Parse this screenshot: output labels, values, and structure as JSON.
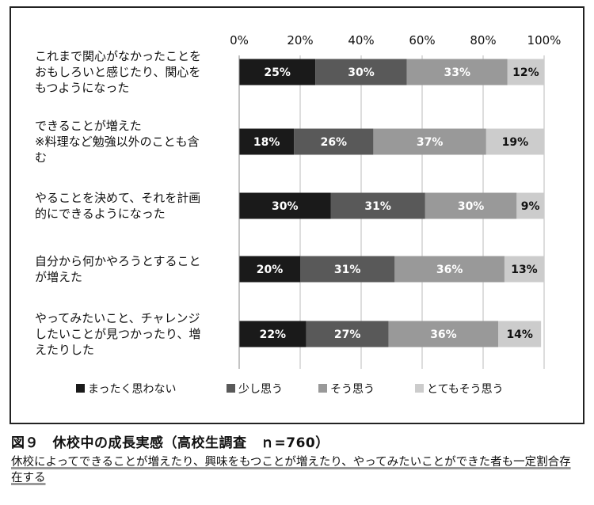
{
  "figure": {
    "caption_title": "図９　休校中の成長実感（高校生調査　ｎ=760）",
    "caption_desc": "休校によってできることが増えたり、興味をもつことが増えたり、やってみたいことができた者も一定割合存在する"
  },
  "chart_data": {
    "type": "bar",
    "orientation": "horizontal",
    "stacked": true,
    "percent_stacked": true,
    "x_ticks": [
      "0%",
      "20%",
      "40%",
      "60%",
      "80%",
      "100%"
    ],
    "xlim": [
      0,
      100
    ],
    "grid": true,
    "categories": [
      [
        "これまで関心がなかったことを",
        "おもしろいと感じたり、関心を",
        "もつようになった"
      ],
      [
        "できることが増えた",
        "※料理など勉強以外のことも含",
        "む"
      ],
      [
        "やることを決めて、それを計画",
        "的にできるようになった"
      ],
      [
        "自分から何かやろうとすること",
        "が増えた"
      ],
      [
        "やってみたいこと、チャレンジ",
        "したいことが見つかったり、増",
        "えたりした"
      ]
    ],
    "series": [
      {
        "name": "まったく思わない",
        "color": "#1a1a1a",
        "label_color": "#ffffff",
        "values": [
          25,
          18,
          30,
          20,
          22
        ]
      },
      {
        "name": "少し思う",
        "color": "#595959",
        "label_color": "#ffffff",
        "values": [
          30,
          26,
          31,
          31,
          27
        ]
      },
      {
        "name": "そう思う",
        "color": "#999999",
        "label_color": "#ffffff",
        "values": [
          33,
          37,
          30,
          36,
          36
        ]
      },
      {
        "name": "とてもそう思う",
        "color": "#cccccc",
        "label_color": "#111111",
        "values": [
          12,
          19,
          9,
          13,
          14
        ]
      }
    ],
    "legend": "bottom"
  }
}
